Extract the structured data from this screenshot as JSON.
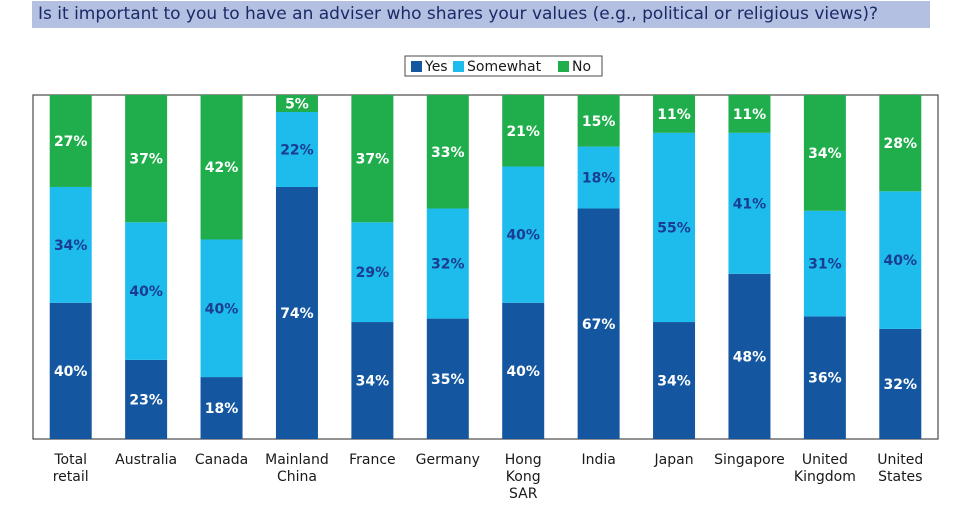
{
  "chart_data": {
    "type": "bar",
    "stacked": true,
    "title": "Is it important to you to have an adviser who shares your values (e.g., political or religious views)?",
    "categories": [
      [
        "Total",
        "retail"
      ],
      [
        "Australia"
      ],
      [
        "Canada"
      ],
      [
        "Mainland",
        "China"
      ],
      [
        "France"
      ],
      [
        "Germany"
      ],
      [
        "Hong",
        "Kong",
        "SAR"
      ],
      [
        "India"
      ],
      [
        "Japan"
      ],
      [
        "Singapore"
      ],
      [
        "United",
        "Kingdom"
      ],
      [
        "United",
        "States"
      ]
    ],
    "series": [
      {
        "name": "Yes",
        "color": "#1457a0",
        "values": [
          40,
          23,
          18,
          74,
          34,
          35,
          40,
          67,
          34,
          48,
          36,
          32
        ]
      },
      {
        "name": "Somewhat",
        "color": "#1ebcec",
        "values": [
          34,
          40,
          40,
          22,
          29,
          32,
          40,
          18,
          55,
          41,
          31,
          40
        ]
      },
      {
        "name": "No",
        "color": "#1fae4b",
        "values": [
          27,
          37,
          42,
          5,
          37,
          33,
          21,
          15,
          11,
          11,
          34,
          28
        ]
      }
    ],
    "value_suffix": "%",
    "ylim": [
      0,
      100
    ],
    "legend_position": "top-center",
    "grid": false
  }
}
